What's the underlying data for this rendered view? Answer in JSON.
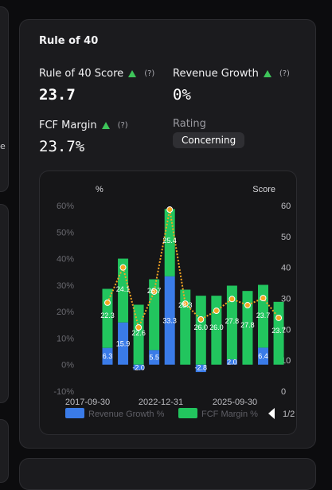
{
  "side_text": "e",
  "card": {
    "title": "Rule of 40",
    "score_label": "Rule of 40 Score",
    "score_value": "23.7",
    "revenue_growth_label": "Revenue Growth",
    "revenue_growth_value": "0%",
    "fcf_margin_label": "FCF Margin",
    "fcf_margin_value": "23.7%",
    "rating_label": "Rating",
    "rating_value": "Concerning",
    "help": "(?)",
    "accent_up": "#3ec55a"
  },
  "legend": {
    "revenue": "Revenue Growth %",
    "fcf": "FCF Margin %",
    "page": "1/2",
    "colors": {
      "revenue": "#3a7be8",
      "fcf": "#22c55e",
      "score": "#f5a623"
    }
  },
  "chart_data": {
    "type": "bar",
    "left_axis_unit": "%",
    "right_axis_title": "Score",
    "left_ticks": [
      "60%",
      "50%",
      "40%",
      "30%",
      "20%",
      "10%",
      "0%",
      "-10%"
    ],
    "right_ticks": [
      "60",
      "50",
      "40",
      "30",
      "20",
      "10",
      "0"
    ],
    "x_tick_labels": [
      "2017-09-30",
      "2022-12-31",
      "2025-09-30"
    ],
    "ylim_left": [
      -10,
      60
    ],
    "ylim_right": [
      0,
      60
    ],
    "series": [
      {
        "name": "Revenue Growth %",
        "values": [
          6.3,
          15.9,
          -2.0,
          5.5,
          33.3,
          0,
          -2.8,
          0,
          2.0,
          0,
          6.4,
          0
        ],
        "labels": [
          "6.3",
          "15.9",
          "-2.0",
          "5.5",
          "33.3",
          "",
          "-2.8",
          "",
          "2.0",
          "",
          "6.4",
          ""
        ]
      },
      {
        "name": "FCF Margin %",
        "values": [
          22.3,
          24.1,
          22.6,
          26.7,
          25.4,
          28.3,
          26.0,
          26.0,
          27.8,
          27.8,
          23.7,
          23.7
        ],
        "labels": [
          "22.3",
          "24.1",
          "22.6",
          "26.7",
          "25.4",
          "28.3",
          "26.0",
          "26.0",
          "27.8",
          "27.8",
          "23.7",
          "23.7"
        ]
      },
      {
        "name": "Rule of 40 Score",
        "values": [
          28.6,
          40.0,
          20.6,
          32.2,
          58.7,
          28.3,
          23.2,
          26.0,
          29.8,
          27.8,
          30.1,
          23.7
        ]
      }
    ]
  }
}
